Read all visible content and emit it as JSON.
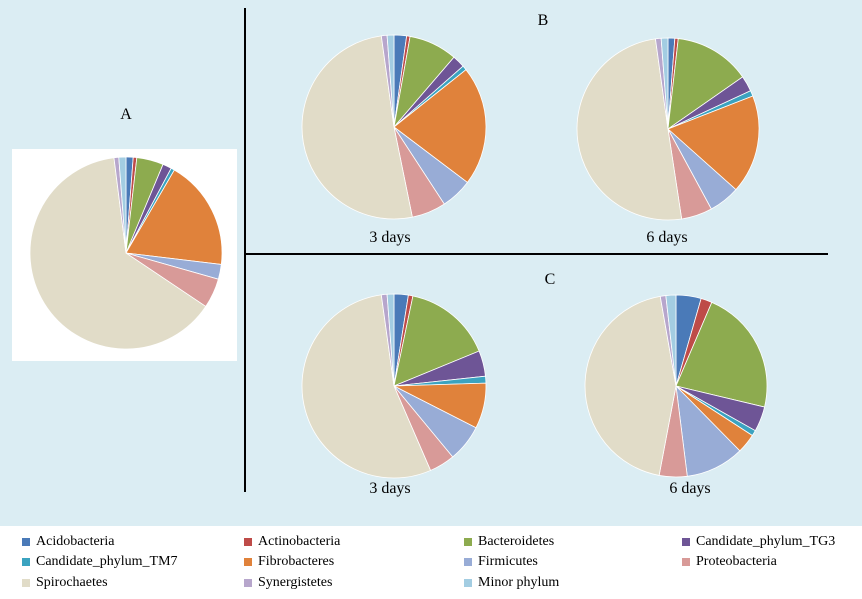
{
  "colors": {
    "Acidobacteria": "#4a7ab8",
    "Actinobacteria": "#be4b48",
    "Bacteroidetes": "#8dab4f",
    "Candidate_phylum_TG3": "#6e5596",
    "Candidate_phylum_TM7": "#3ba3c0",
    "Fibrobacteres": "#e0823b",
    "Firmicutes": "#98acd6",
    "Proteobacteria": "#d89a98",
    "Spirochaetes": "#e1dcc8",
    "Synergistetes": "#b7a6cc",
    "Minor phylum": "#a3cde2"
  },
  "chart_data": {
    "type": "pie",
    "legend_position": "bottom",
    "categories": [
      "Acidobacteria",
      "Actinobacteria",
      "Bacteroidetes",
      "Candidate_phylum_TG3",
      "Candidate_phylum_TM7",
      "Fibrobacteres",
      "Firmicutes",
      "Proteobacteria",
      "Spirochaetes",
      "Synergistetes",
      "Minor phylum"
    ],
    "panels": [
      {
        "panel_label": "A",
        "caption": "",
        "values": [
          1.2,
          0.6,
          4.5,
          1.5,
          0.6,
          18.5,
          2.5,
          5.0,
          63.6,
          0.8,
          1.2
        ]
      },
      {
        "panel_label": "B",
        "caption": "3 days",
        "values": [
          2.2,
          0.6,
          8.5,
          2.2,
          0.8,
          21.0,
          5.5,
          6.0,
          51.0,
          1.0,
          1.2
        ]
      },
      {
        "panel_label": "",
        "caption": "6 days",
        "values": [
          1.2,
          0.6,
          13.5,
          2.8,
          1.0,
          17.5,
          5.5,
          5.5,
          50.2,
          1.0,
          1.2
        ]
      },
      {
        "panel_label": "C",
        "caption": "3 days",
        "values": [
          2.5,
          0.8,
          15.5,
          4.5,
          1.2,
          8.0,
          6.5,
          4.5,
          54.3,
          1.0,
          1.2
        ]
      },
      {
        "panel_label": "",
        "caption": "6 days",
        "values": [
          4.5,
          2.0,
          22.5,
          4.5,
          1.0,
          3.5,
          10.5,
          5.0,
          44.7,
          1.0,
          1.8
        ]
      }
    ]
  },
  "legend": [
    "Acidobacteria",
    "Actinobacteria",
    "Bacteroidetes",
    "Candidate_phylum_TG3",
    "Candidate_phylum_TM7",
    "Fibrobacteres",
    "Firmicutes",
    "Proteobacteria",
    "Spirochaetes",
    "Synergistetes",
    "Minor phylum"
  ]
}
